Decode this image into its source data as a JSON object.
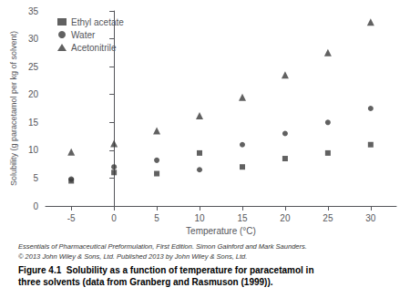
{
  "chart_data": {
    "type": "scatter",
    "xlabel": "Temperature (°C)",
    "ylabel": "Solubility (g paracetamol per kg of solvent)",
    "x": [
      -5,
      0,
      5,
      10,
      15,
      20,
      25,
      30
    ],
    "series": [
      {
        "name": "Ethyl acetate",
        "color": "#3a3a3a",
        "marker": "square",
        "values": [
          4.5,
          6.0,
          5.8,
          9.5,
          7.0,
          8.5,
          9.5,
          11.0
        ]
      },
      {
        "name": "Water",
        "color": "#3a3a3a",
        "marker": "circle",
        "values": [
          4.8,
          7.0,
          8.2,
          6.5,
          11.0,
          13.0,
          15.0,
          17.5
        ]
      },
      {
        "name": "Acetonitrile",
        "color": "#3a3a3a",
        "marker": "triangle",
        "values": [
          9.7,
          11.2,
          13.5,
          16.2,
          19.5,
          23.5,
          27.5,
          33.0
        ]
      }
    ],
    "xlim": [
      -8,
      33
    ],
    "xticks": [
      -5,
      0,
      5,
      10,
      15,
      20,
      25,
      30
    ],
    "ylim": [
      0,
      35
    ],
    "yticks": [
      0,
      5,
      10,
      15,
      20,
      25,
      30,
      35
    ],
    "grid": false,
    "legend": "upper left",
    "annotations": [
      "Essentials of Pharmaceutical Preformulation, First Edition. Simon Gainford and Mark Saunders.",
      "© 2013 John Wiley & Sons, Ltd. Published 2013 by John Wiley & Sons, Ltd.",
      "Figure 4.1  Solubility as a function of temperature for paracetamol in",
      "three solvents (data from Granberg and Rasmuson (1999))."
    ]
  }
}
